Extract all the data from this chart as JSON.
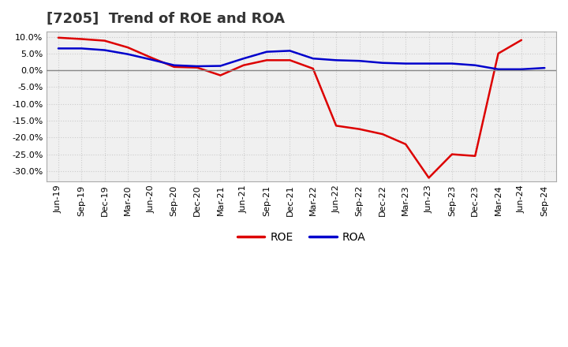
{
  "title": "[7205]  Trend of ROE and ROA",
  "x_labels": [
    "Jun-19",
    "Sep-19",
    "Dec-19",
    "Mar-20",
    "Jun-20",
    "Sep-20",
    "Dec-20",
    "Mar-21",
    "Jun-21",
    "Sep-21",
    "Dec-21",
    "Mar-22",
    "Jun-22",
    "Sep-22",
    "Dec-22",
    "Mar-23",
    "Jun-23",
    "Sep-23",
    "Dec-23",
    "Mar-24",
    "Jun-24",
    "Sep-24"
  ],
  "roe": [
    9.7,
    9.3,
    8.8,
    6.8,
    3.8,
    1.0,
    0.8,
    -1.5,
    1.5,
    3.0,
    3.0,
    0.5,
    -16.5,
    -17.5,
    -19.0,
    -22.0,
    -32.0,
    -25.0,
    -25.5,
    5.0,
    9.0,
    null
  ],
  "roa": [
    6.5,
    6.5,
    6.0,
    4.8,
    3.2,
    1.5,
    1.2,
    1.3,
    3.5,
    5.5,
    5.8,
    3.5,
    3.0,
    2.8,
    2.2,
    2.0,
    2.0,
    2.0,
    1.5,
    0.3,
    0.3,
    0.7
  ],
  "roe_color": "#dd0000",
  "roa_color": "#0000cc",
  "bg_color": "#ffffff",
  "plot_bg_color": "#f0f0f0",
  "grid_color": "#cccccc",
  "zero_line_color": "#888888",
  "ylim": [
    -33.0,
    11.5
  ],
  "yticks": [
    10.0,
    5.0,
    0.0,
    -5.0,
    -10.0,
    -15.0,
    -20.0,
    -25.0,
    -30.0
  ],
  "title_fontsize": 13,
  "legend_fontsize": 10,
  "tick_fontsize": 8,
  "line_width": 1.8
}
